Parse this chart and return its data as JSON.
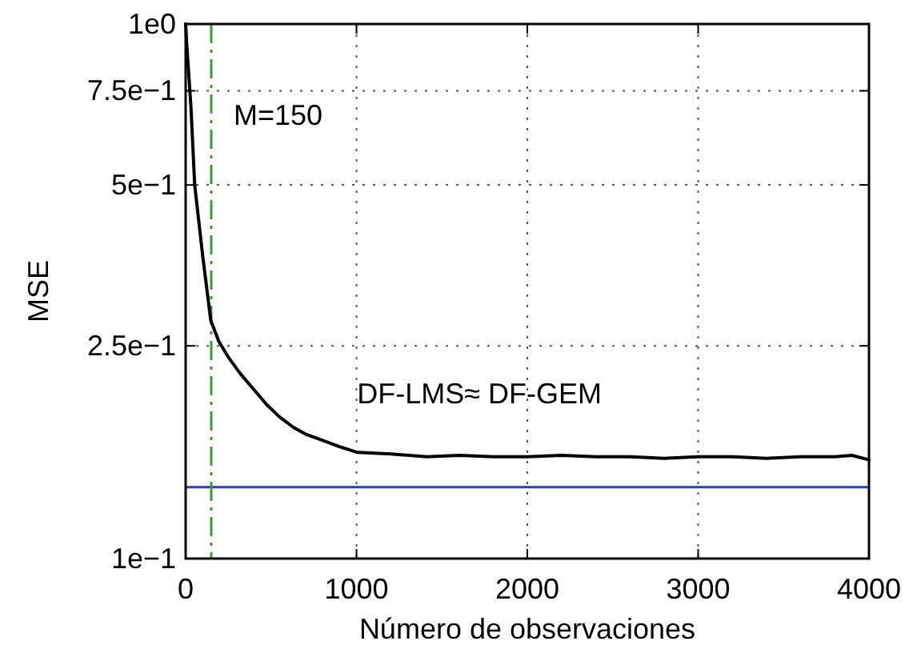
{
  "chart_data": {
    "type": "line",
    "xlabel": "Número de observaciones",
    "ylabel": "MSE",
    "log": "y",
    "grid": true,
    "line_style": "solid",
    "marker": "none",
    "xlim": [
      0,
      4000
    ],
    "xticks": [
      0,
      1000,
      2000,
      3000,
      4000
    ],
    "ylim": [
      0.1,
      1
    ],
    "yticks": [
      {
        "value": 0.1,
        "label": "1e−1"
      },
      {
        "value": 0.25,
        "label": "2.5e−1"
      },
      {
        "value": 0.5,
        "label": "5e−1"
      },
      {
        "value": 0.75,
        "label": "7.5e−1"
      },
      {
        "value": 1,
        "label": "1e0"
      }
    ],
    "series": [
      {
        "color": "#000000",
        "x": [
          0,
          6,
          31,
          53,
          100,
          147,
          194,
          250,
          319,
          400,
          475,
          550,
          631,
          700,
          787,
          900,
          1006,
          1200,
          1412,
          1600,
          1800,
          2000,
          2200,
          2400,
          2600,
          2800,
          3000,
          3200,
          3400,
          3600,
          3800,
          3900,
          4000
        ],
        "values": [
          1,
          0.92,
          0.7,
          0.5,
          0.368,
          0.279,
          0.255,
          0.238,
          0.222,
          0.207,
          0.194,
          0.184,
          0.176,
          0.171,
          0.167,
          0.162,
          0.158,
          0.157,
          0.155,
          0.156,
          0.155,
          0.155,
          0.156,
          0.155,
          0.155,
          0.154,
          0.155,
          0.155,
          0.154,
          0.155,
          0.155,
          0.156,
          0.153
        ]
      }
    ],
    "ref_lines": [
      {
        "axis": "y",
        "value": 0.136,
        "color": "#2b3fa8",
        "line_style": "solid"
      },
      {
        "axis": "x",
        "value": 150,
        "label": "M=150",
        "color": "#3a9a3a",
        "line_style": "dashed"
      }
    ],
    "annotations": [
      "DF-LMS≈ DF-GEM"
    ]
  }
}
